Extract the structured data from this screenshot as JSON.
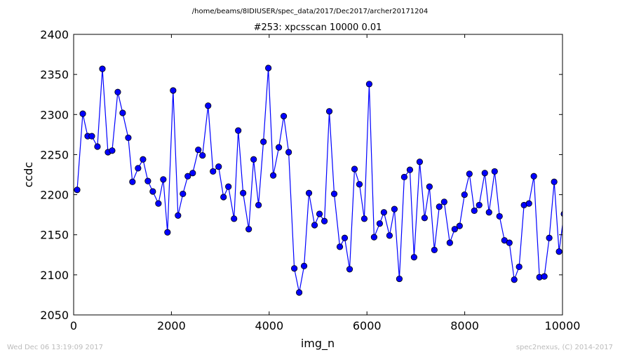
{
  "page": {
    "path_title": "/home/beams/8IDIUSER/spec_data/2017/Dec2017/archer20171204",
    "footer_left": "Wed Dec 06 13:19:09 2017",
    "footer_right": "spec2nexus, (C) 2014-2017"
  },
  "chart_data": {
    "type": "line",
    "title": "#253: xpcsscan 10000 0.01",
    "xlabel": "img_n",
    "ylabel": "ccdc",
    "xlim": [
      0,
      10000
    ],
    "ylim": [
      2050,
      2400
    ],
    "xticks": [
      0,
      2000,
      4000,
      6000,
      8000,
      10000
    ],
    "yticks": [
      2050,
      2100,
      2150,
      2200,
      2250,
      2300,
      2350,
      2400
    ],
    "grid": false,
    "line_color": "#0000ff",
    "marker_color": "#0000ff",
    "series": [
      {
        "x": [
          72,
          187,
          287,
          372,
          487,
          588,
          702,
          788,
          903,
          1003,
          1118,
          1203,
          1318,
          1419,
          1519,
          1619,
          1734,
          1834,
          1920,
          2035,
          2135,
          2235,
          2335,
          2436,
          2550,
          2636,
          2751,
          2851,
          2966,
          3066,
          3166,
          3281,
          3367,
          3467,
          3582,
          3682,
          3782,
          3883,
          3983,
          4083,
          4198,
          4298,
          4399,
          4514,
          4614,
          4714,
          4814,
          4929,
          5029,
          5130,
          5230,
          5330,
          5445,
          5545,
          5646,
          5746,
          5846,
          5946,
          6046,
          6146,
          6261,
          6347,
          6462,
          6562,
          6663,
          6763,
          6878,
          6964,
          7079,
          7179,
          7279,
          7379,
          7479,
          7580,
          7695,
          7795,
          7895,
          7995,
          8096,
          8196,
          8296,
          8411,
          8497,
          8612,
          8712,
          8813,
          8913,
          9013,
          9113,
          9213,
          9314,
          9414,
          9529,
          9629,
          9729,
          9830,
          9930,
          10030
        ],
        "y": [
          2206,
          2301,
          2273,
          2273,
          2260,
          2357,
          2253,
          2255,
          2328,
          2302,
          2271,
          2216,
          2233,
          2244,
          2217,
          2204,
          2189,
          2219,
          2153,
          2330,
          2174,
          2201,
          2223,
          2227,
          2256,
          2249,
          2311,
          2229,
          2235,
          2197,
          2210,
          2170,
          2280,
          2202,
          2157,
          2244,
          2187,
          2266,
          2358,
          2224,
          2259,
          2298,
          2253,
          2108,
          2078,
          2111,
          2202,
          2162,
          2176,
          2167,
          2304,
          2201,
          2135,
          2146,
          2107,
          2232,
          2213,
          2170,
          2338,
          2147,
          2164,
          2178,
          2149,
          2182,
          2095,
          2222,
          2231,
          2122,
          2241,
          2171,
          2210,
          2131,
          2185,
          2191,
          2140,
          2157,
          2161,
          2200,
          2226,
          2180,
          2187,
          2227,
          2178,
          2229,
          2173,
          2143,
          2140,
          2094,
          2110,
          2187,
          2189,
          2223,
          2097,
          2098,
          2146,
          2216,
          2129,
          2176
        ]
      }
    ]
  }
}
